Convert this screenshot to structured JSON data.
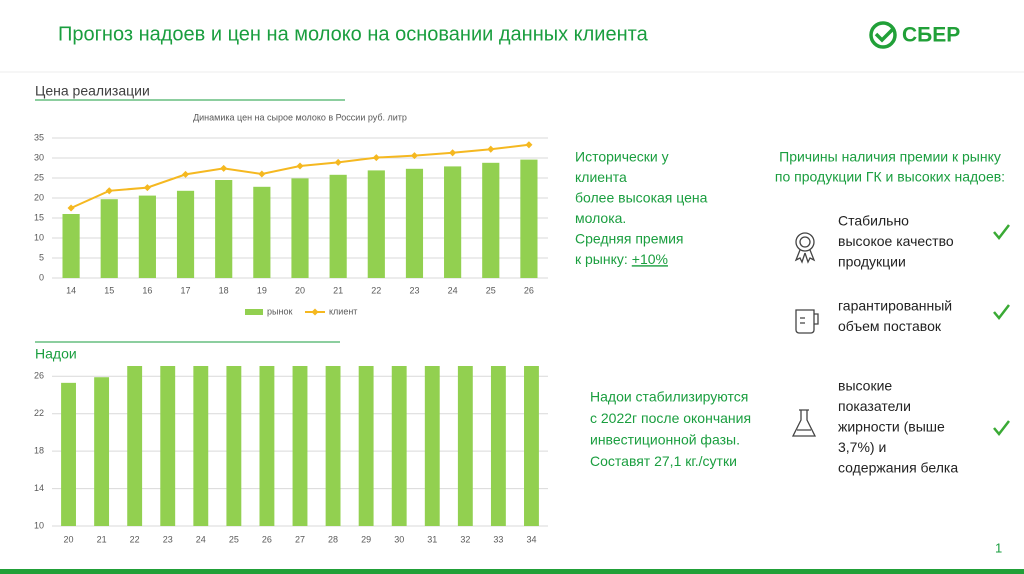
{
  "header": {
    "title": "Прогноз надоев и цен на молоко на основании данных клиента",
    "logo": "СБЕР"
  },
  "sections": [
    "Цена реализации",
    "Надои"
  ],
  "chart_data": [
    {
      "type": "bar",
      "title": "Динамика цен на сырое молоко в России руб. литр",
      "categories": [
        "14",
        "15",
        "16",
        "17",
        "18",
        "19",
        "20",
        "21",
        "22",
        "23",
        "24",
        "25",
        "26"
      ],
      "series": [
        {
          "name": "рынок",
          "type": "bar",
          "color": "#92d050",
          "values": [
            16,
            19.7,
            20.6,
            21.8,
            24.5,
            22.8,
            24.9,
            25.8,
            26.9,
            27.3,
            27.9,
            28.8,
            29.6
          ]
        },
        {
          "name": "клиент",
          "type": "line",
          "color": "#f5b820",
          "values": [
            17.5,
            21.8,
            22.6,
            25.9,
            27.4,
            26,
            28,
            28.9,
            30.1,
            30.6,
            31.3,
            32.2,
            33.3
          ]
        }
      ],
      "ylim": [
        0,
        35
      ],
      "yticks": [
        0,
        5,
        10,
        15,
        20,
        25,
        30,
        35
      ],
      "grid": true,
      "legend": "bottom"
    },
    {
      "type": "bar",
      "categories": [
        "20",
        "21",
        "22",
        "23",
        "24",
        "25",
        "26",
        "27",
        "28",
        "29",
        "30",
        "31",
        "32",
        "33",
        "34"
      ],
      "series": [
        {
          "type": "bar",
          "color": "#92d050",
          "values": [
            25.3,
            25.9,
            27.1,
            27.1,
            27.1,
            27.1,
            27.1,
            27.1,
            27.1,
            27.1,
            27.1,
            27.1,
            27.1,
            27.1,
            27.1
          ]
        }
      ],
      "ylim": [
        10,
        27.1
      ],
      "yticks": [
        10,
        14,
        18,
        22,
        26
      ],
      "grid": true
    }
  ],
  "notes": [
    {
      "lines": [
        "Исторически у",
        "клиента",
        "более высокая цена",
        " молока.",
        "Средняя премия",
        " к рынку: "
      ],
      "premium": "+10%"
    },
    {
      "lines": [
        "Надои стабилизируются",
        "с 2022г после окончания",
        "инвестиционной фазы.",
        "Составят 27,1 кг./сутки"
      ]
    }
  ],
  "reasons": {
    "heading": [
      "Причины наличия премии к рынку",
      "по продукции ГК и высоких надоев:"
    ],
    "items": [
      {
        "lines": [
          "Стабильно",
          "высокое   качество",
          "продукции"
        ]
      },
      {
        "lines": [
          "гарантированный",
          "объем поставок"
        ]
      },
      {
        "lines": [
          "высокие",
          "показатели",
          "жирности (выше",
          "3,7%) и",
          "содержания белка"
        ]
      }
    ]
  },
  "page_number": "1"
}
